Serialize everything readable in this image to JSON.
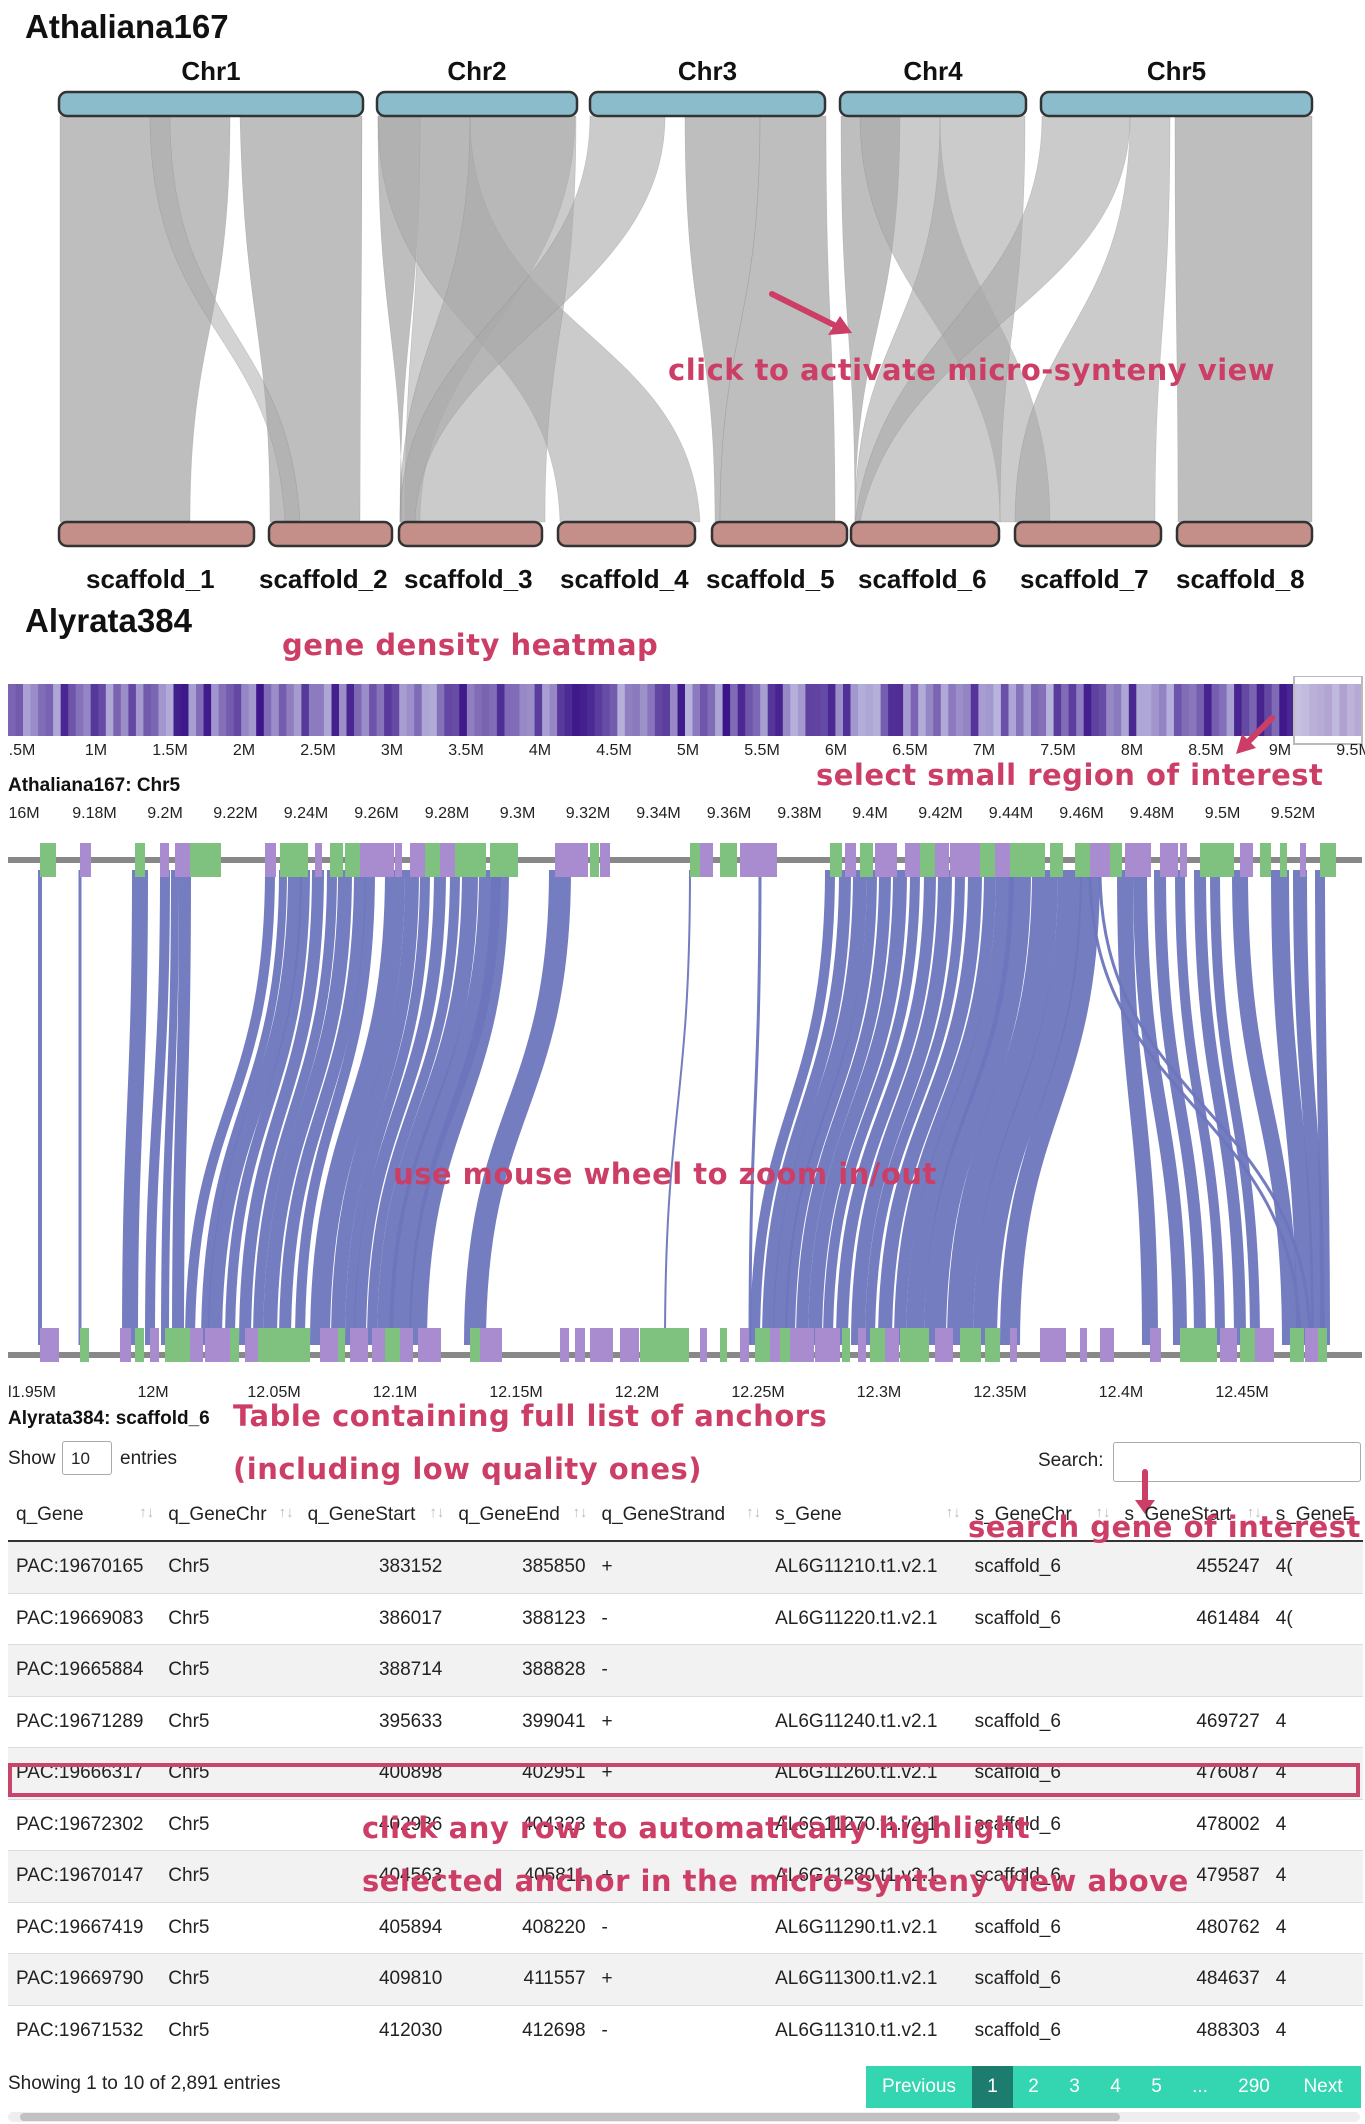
{
  "top_view": {
    "query_label": "Athaliana167",
    "subject_label": "Alyrata384",
    "chromosomes": [
      "Chr1",
      "Chr2",
      "Chr3",
      "Chr4",
      "Chr5"
    ],
    "scaffolds": [
      "scaffold_1",
      "scaffold_2",
      "scaffold_3",
      "scaffold_4",
      "scaffold_5",
      "scaffold_6",
      "scaffold_7",
      "scaffold_8"
    ],
    "annotation": "click to activate micro-synteny view",
    "colors": {
      "chr": "#8bbccb",
      "scaffold": "#c48f88",
      "ribbon": "#a8a8a8"
    }
  },
  "heatmap": {
    "annotation": "gene density heatmap",
    "ticks": [
      ".5M",
      "1M",
      "1.5M",
      "2M",
      "2.5M",
      "3M",
      "3.5M",
      "4M",
      "4.5M",
      "5M",
      "5.5M",
      "6M",
      "6.5M",
      "7M",
      "7.5M",
      "8M",
      "8.5M",
      "9M",
      "9.5M"
    ],
    "select_annotation": "select small region of interest",
    "colors": {
      "low": "#b8b3dc",
      "high": "#3b1488"
    }
  },
  "micro": {
    "query_label": "Athaliana167: Chr5",
    "subject_label": "Alyrata384: scaffold_6",
    "top_ticks": [
      "16M",
      "9.18M",
      "9.2M",
      "9.22M",
      "9.24M",
      "9.26M",
      "9.28M",
      "9.3M",
      "9.32M",
      "9.34M",
      "9.36M",
      "9.38M",
      "9.4M",
      "9.42M",
      "9.44M",
      "9.46M",
      "9.48M",
      "9.5M",
      "9.52M"
    ],
    "bottom_ticks": [
      "l1.95M",
      "12M",
      "12.05M",
      "12.1M",
      "12.15M",
      "12.2M",
      "12.25M",
      "12.3M",
      "12.35M",
      "12.4M",
      "12.45M"
    ],
    "zoom_annotation": "use mouse wheel to zoom in/out",
    "colors": {
      "ribbon": "#6d76bd",
      "gene_fwd": "#7fc27f",
      "gene_rev": "#a98bcf",
      "axis": "#888888"
    }
  },
  "table": {
    "annotation_line1": "Table containing full list of anchors",
    "annotation_line2": "(including low quality ones)",
    "show_label": "Show",
    "show_value": "10",
    "entries_label": "entries",
    "search_label": "Search:",
    "search_annotation": "search gene of interest",
    "columns": [
      "q_Gene",
      "q_GeneChr",
      "q_GeneStart",
      "q_GeneEnd",
      "q_GeneStrand",
      "s_Gene",
      "s_GeneChr",
      "s_GeneStart",
      "s_GeneE"
    ],
    "rows": [
      [
        "PAC:19670165",
        "Chr5",
        "383152",
        "385850",
        "+",
        "AL6G11210.t1.v2.1",
        "scaffold_6",
        "455247",
        "4("
      ],
      [
        "PAC:19669083",
        "Chr5",
        "386017",
        "388123",
        "-",
        "AL6G11220.t1.v2.1",
        "scaffold_6",
        "461484",
        "4("
      ],
      [
        "PAC:19665884",
        "Chr5",
        "388714",
        "388828",
        "-",
        "",
        "",
        "",
        ""
      ],
      [
        "PAC:19671289",
        "Chr5",
        "395633",
        "399041",
        "+",
        "AL6G11240.t1.v2.1",
        "scaffold_6",
        "469727",
        "4"
      ],
      [
        "PAC:19666317",
        "Chr5",
        "400898",
        "402951",
        "+",
        "AL6G11260.t1.v2.1",
        "scaffold_6",
        "476087",
        "4"
      ],
      [
        "PAC:19672302",
        "Chr5",
        "402986",
        "404323",
        "-",
        "AL6G11270.t1.v2.1",
        "scaffold_6",
        "478002",
        "4"
      ],
      [
        "PAC:19670147",
        "Chr5",
        "404563",
        "405811",
        "+",
        "AL6G11280.t1.v2.1",
        "scaffold_6",
        "479587",
        "4"
      ],
      [
        "PAC:19667419",
        "Chr5",
        "405894",
        "408220",
        "-",
        "AL6G11290.t1.v2.1",
        "scaffold_6",
        "480762",
        "4"
      ],
      [
        "PAC:19669790",
        "Chr5",
        "409810",
        "411557",
        "+",
        "AL6G11300.t1.v2.1",
        "scaffold_6",
        "484637",
        "4"
      ],
      [
        "PAC:19671532",
        "Chr5",
        "412030",
        "412698",
        "-",
        "AL6G11310.t1.v2.1",
        "scaffold_6",
        "488303",
        "4"
      ]
    ],
    "row_annotation_line1": "click any row to automatically highlight",
    "row_annotation_line2": "selected anchor in the micro-synteny view above",
    "info": "Showing 1 to 10 of 2,891 entries",
    "pagination": [
      "Previous",
      "1",
      "2",
      "3",
      "4",
      "5",
      "...",
      "290",
      "Next"
    ],
    "colors": {
      "pager": "#33d6b0",
      "pager_active": "#1c7c6d",
      "highlight": "#c8456c"
    }
  }
}
